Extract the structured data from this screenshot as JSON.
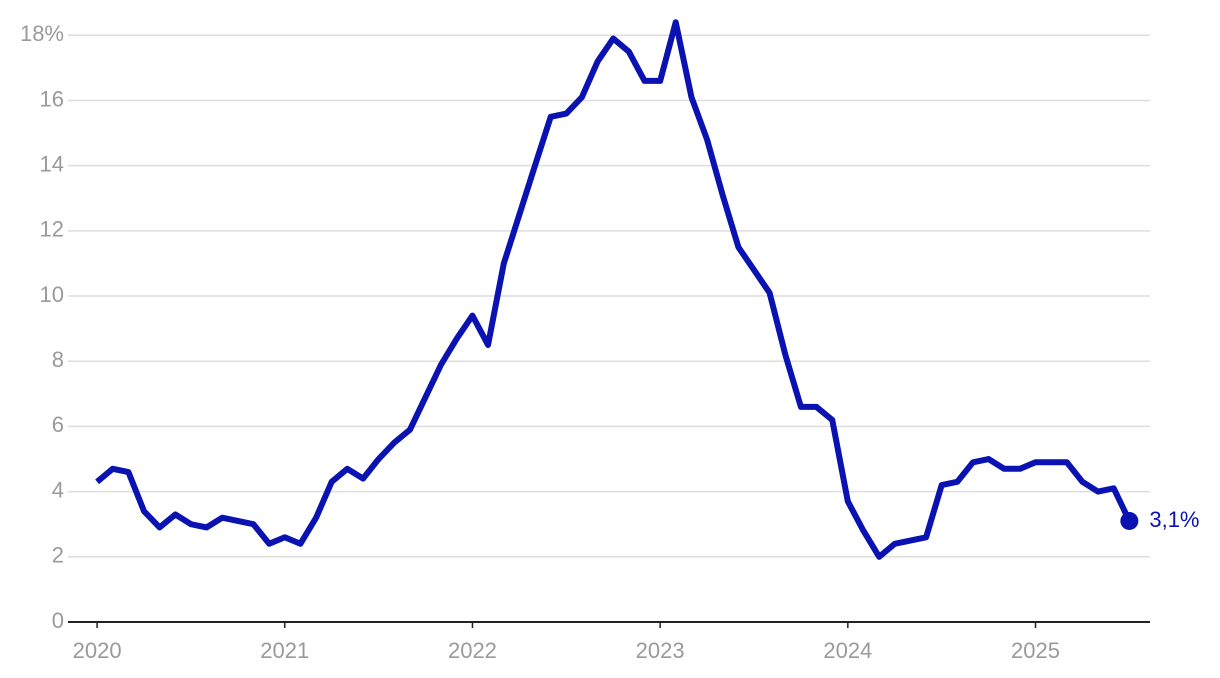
{
  "chart_data": {
    "type": "line",
    "x": [
      2020,
      2020.083,
      2020.167,
      2020.25,
      2020.333,
      2020.417,
      2020.5,
      2020.583,
      2020.667,
      2020.75,
      2020.833,
      2020.917,
      2021,
      2021.083,
      2021.167,
      2021.25,
      2021.333,
      2021.417,
      2021.5,
      2021.583,
      2021.667,
      2021.75,
      2021.833,
      2021.917,
      2022,
      2022.083,
      2022.167,
      2022.25,
      2022.333,
      2022.417,
      2022.5,
      2022.583,
      2022.667,
      2022.75,
      2022.833,
      2022.917,
      2023,
      2023.083,
      2023.167,
      2023.25,
      2023.333,
      2023.417,
      2023.5,
      2023.583,
      2023.667,
      2023.75,
      2023.833,
      2023.917,
      2024,
      2024.083,
      2024.167,
      2024.25,
      2024.333,
      2024.417,
      2024.5,
      2024.583,
      2024.667,
      2024.75,
      2024.833,
      2024.917,
      2025,
      2025.083,
      2025.167,
      2025.25,
      2025.333,
      2025.417,
      2025.5
    ],
    "series": [
      {
        "color": "#0a12b2",
        "values": [
          4.3,
          4.7,
          4.6,
          3.4,
          2.9,
          3.3,
          3.0,
          2.9,
          3.2,
          3.1,
          3.0,
          2.4,
          2.6,
          2.4,
          3.2,
          4.3,
          4.7,
          4.4,
          5.0,
          5.5,
          5.9,
          6.9,
          7.9,
          8.7,
          9.4,
          8.5,
          11.0,
          12.5,
          14.0,
          15.5,
          15.6,
          16.1,
          17.2,
          17.9,
          17.5,
          16.6,
          16.6,
          18.4,
          16.1,
          14.8,
          13.1,
          11.5,
          10.8,
          10.1,
          8.2,
          6.6,
          6.6,
          6.2,
          3.7,
          2.8,
          2.0,
          2.4,
          2.5,
          2.6,
          4.2,
          4.3,
          4.9,
          5.0,
          4.7,
          4.7,
          4.9,
          4.9,
          4.9,
          4.3,
          4.0,
          4.1,
          3.1
        ],
        "value_labels": [
          null,
          null,
          null,
          null,
          null,
          null,
          null,
          null,
          null,
          null,
          null,
          null,
          null,
          null,
          null,
          null,
          null,
          null,
          null,
          null,
          null,
          null,
          null,
          null,
          null,
          null,
          null,
          null,
          null,
          null,
          null,
          null,
          null,
          null,
          null,
          null,
          null,
          null,
          null,
          null,
          null,
          null,
          null,
          null,
          null,
          null,
          null,
          null,
          null,
          null,
          null,
          null,
          null,
          null,
          null,
          null,
          null,
          null,
          null,
          null,
          null,
          null,
          null,
          null,
          null,
          null,
          "3,1%"
        ]
      }
    ],
    "xlim": [
      2019.845,
      2025.61
    ],
    "xticks": [
      2020,
      2021,
      2022,
      2023,
      2024,
      2025
    ],
    "ylim": [
      0,
      18.5
    ],
    "yticks": [
      0,
      2,
      4,
      6,
      8,
      10,
      12,
      14,
      16,
      {
        "value": 18,
        "label": "18%"
      }
    ],
    "grid": true
  }
}
